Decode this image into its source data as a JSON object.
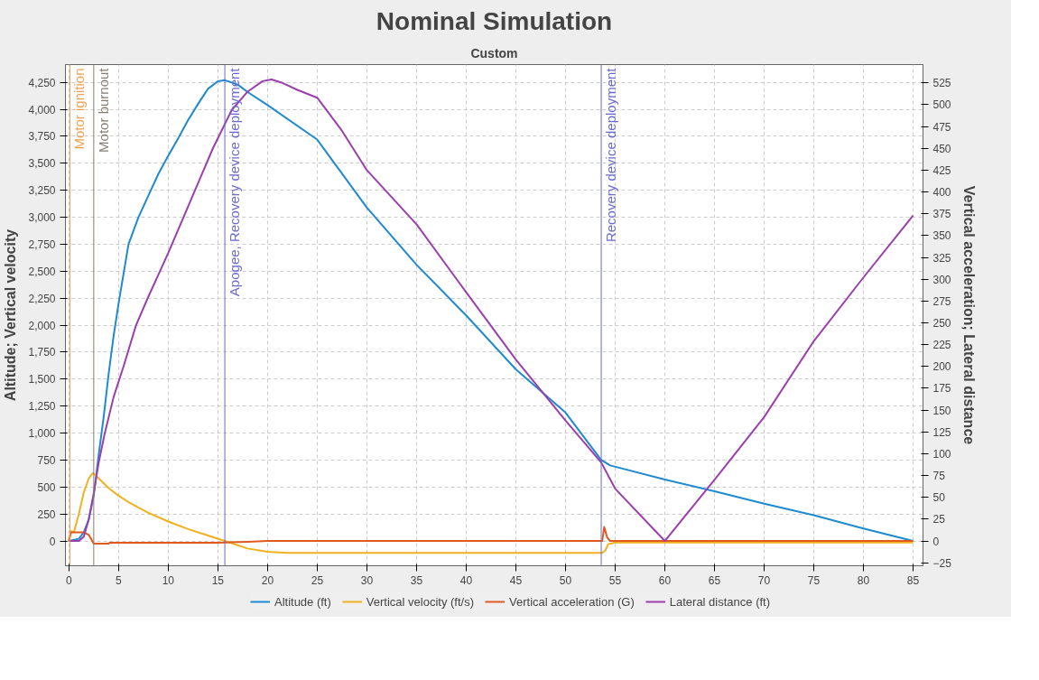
{
  "chart_data": {
    "type": "line",
    "title": "Nominal Simulation",
    "subtitle": "Custom",
    "ylabel": "Altitude; Vertical velocity",
    "y2label": "Vertical acceleration; Lateral distance",
    "xlim": [
      -0.35,
      86
    ],
    "xticks": [
      0,
      5,
      10,
      15,
      20,
      25,
      30,
      35,
      40,
      45,
      50,
      55,
      60,
      65,
      70,
      75,
      80,
      85
    ],
    "ylim": [
      -230,
      4415
    ],
    "yticks": [
      0,
      250,
      500,
      750,
      {
        "value": 1000,
        "label": "1,000"
      },
      {
        "value": 1250,
        "label": "1,250"
      },
      {
        "value": 1500,
        "label": "1,500"
      },
      {
        "value": 1750,
        "label": "1,750"
      },
      {
        "value": 2000,
        "label": "2,000"
      },
      {
        "value": 2250,
        "label": "2,250"
      },
      {
        "value": 2500,
        "label": "2,500"
      },
      {
        "value": 2750,
        "label": "2,750"
      },
      {
        "value": 3000,
        "label": "3,000"
      },
      {
        "value": 3250,
        "label": "3,250"
      },
      {
        "value": 3500,
        "label": "3,500"
      },
      {
        "value": 3750,
        "label": "3,750"
      },
      {
        "value": 4000,
        "label": "4,000"
      },
      {
        "value": 4250,
        "label": "4,250"
      }
    ],
    "y2lim": [
      -28.4,
      546
    ],
    "y2ticks": [
      -25,
      0,
      25,
      50,
      75,
      100,
      125,
      150,
      175,
      200,
      225,
      250,
      275,
      300,
      325,
      350,
      375,
      400,
      425,
      450,
      475,
      500,
      525
    ],
    "grid": true,
    "legend": "bottom",
    "line_style": "solid",
    "marker": "none",
    "ref_lines": [
      {
        "axis": "x",
        "value": 0.1,
        "label": "Motor ignition",
        "color": "#f5a050"
      },
      {
        "axis": "x",
        "value": 2.5,
        "label": "Motor burnout",
        "color": "#8a7e70"
      },
      {
        "axis": "x",
        "value": 15.7,
        "label": "Apogee, Recovery device deployment",
        "color": "#6a6ad0"
      },
      {
        "axis": "x",
        "value": 53.6,
        "label": "Recovery device deployment",
        "color": "#6a6ad0"
      }
    ],
    "series": [
      {
        "name": "Altitude (ft)",
        "color": "#1f8ad0",
        "x": [
          0,
          1,
          1.5,
          2,
          2.5,
          3,
          3.5,
          4,
          4.5,
          5,
          6,
          7,
          8,
          9,
          10,
          11,
          12,
          13,
          14,
          15,
          15.7,
          17,
          18,
          20,
          25,
          30,
          35,
          40,
          45,
          50,
          53.6,
          54.5,
          60,
          65,
          70,
          75,
          80,
          85
        ],
        "values": [
          0,
          20,
          80,
          200,
          420,
          800,
          1150,
          1550,
          1900,
          2200,
          2750,
          3000,
          3200,
          3400,
          3570,
          3730,
          3900,
          4050,
          4190,
          4260,
          4270,
          4230,
          4160,
          4040,
          3720,
          3090,
          2560,
          2090,
          1590,
          1190,
          750,
          700,
          570,
          460,
          345,
          238,
          115,
          0
        ]
      },
      {
        "name": "Vertical velocity (ft/s)",
        "color": "#f0b020",
        "x": [
          0,
          0.2,
          0.5,
          1,
          1.5,
          2,
          2.4,
          3,
          4,
          5,
          6,
          8,
          10,
          12,
          14,
          15.7,
          17,
          18,
          20,
          22,
          53.7,
          54,
          54.3,
          55,
          85
        ],
        "values": [
          0,
          90,
          80,
          250,
          450,
          580,
          630,
          580,
          490,
          420,
          360,
          260,
          180,
          110,
          50,
          0,
          -40,
          -70,
          -100,
          -110,
          -110,
          -90,
          -30,
          -15,
          -15
        ]
      },
      {
        "name": "Vertical acceleration (G)",
        "color": "#e05a20",
        "axis": "y2",
        "x": [
          0,
          0.2,
          1.5,
          2,
          2.5,
          4,
          4.1,
          15,
          18,
          20,
          53.7,
          53.9,
          54.2,
          54.5,
          85
        ],
        "values": [
          0,
          10,
          10,
          7,
          -3,
          -3,
          -2,
          -2,
          -1,
          0,
          0,
          16,
          4,
          0,
          0
        ]
      },
      {
        "name": "Lateral distance (ft)",
        "color": "#9b3fad",
        "axis": "y2",
        "x": [
          0,
          1,
          1.5,
          2,
          2.5,
          3,
          3.6,
          4.5,
          5.5,
          6.75,
          8,
          9,
          10,
          11.5,
          13,
          14.5,
          16.4,
          18,
          19.5,
          20.4,
          21.5,
          23,
          25,
          27.5,
          30,
          35,
          40,
          45,
          50,
          53.6,
          55,
          60,
          65,
          70,
          75,
          80,
          85
        ],
        "values": [
          0,
          0,
          5,
          25,
          55,
          90,
          123,
          165,
          200,
          247,
          280,
          305,
          330,
          370,
          410,
          450,
          494,
          515,
          527,
          529,
          525,
          517,
          508,
          470,
          425,
          363,
          285,
          208,
          138,
          90,
          60,
          0,
          70,
          142,
          229,
          302,
          373
        ]
      }
    ]
  }
}
